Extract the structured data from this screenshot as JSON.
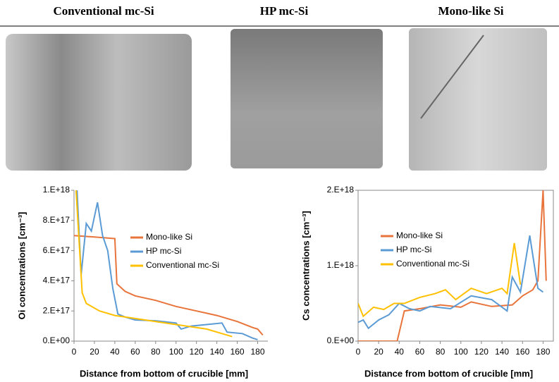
{
  "images": {
    "labels": [
      "Conventional  mc-Si",
      "HP mc-Si",
      "Mono-like Si"
    ]
  },
  "chart_data": [
    {
      "type": "line",
      "x_label": "Distance from bottom of crucible [mm]",
      "y_label": "Oi  concentrations [cm⁻³]",
      "xlim": [
        0,
        190
      ],
      "xticks": [
        0,
        20,
        40,
        60,
        80,
        100,
        120,
        140,
        160,
        180
      ],
      "ylim": [
        0,
        1e+18
      ],
      "yticks": [
        {
          "value": 0,
          "label": "0.E+00"
        },
        {
          "value": 2e+17,
          "label": "2.E+17"
        },
        {
          "value": 4e+17,
          "label": "4.E+17"
        },
        {
          "value": 6e+17,
          "label": "6.E+17"
        },
        {
          "value": 8e+17,
          "label": "8.E+17"
        },
        {
          "value": 1e+18,
          "label": "1.E+18"
        }
      ],
      "series": [
        {
          "name": "Mono-like Si",
          "color": "#e8743b",
          "x": [
            0,
            20,
            40,
            42,
            50,
            60,
            80,
            100,
            120,
            140,
            160,
            175,
            180,
            185
          ],
          "values": [
            7e+17,
            6.9e+17,
            6.8e+17,
            3.8e+17,
            3.3e+17,
            3e+17,
            2.7e+17,
            2.3e+17,
            2e+17,
            1.7e+17,
            1.3e+17,
            9e+16,
            8e+16,
            4e+16
          ]
        },
        {
          "name": "HP mc-Si",
          "color": "#5b9bd5",
          "x": [
            3,
            7,
            12,
            17,
            23,
            28,
            33,
            38,
            43,
            50,
            60,
            80,
            100,
            105,
            115,
            130,
            145,
            150,
            165,
            175,
            180
          ],
          "values": [
            1e+18,
            4.4e+17,
            7.8e+17,
            7.3e+17,
            9.2e+17,
            7e+17,
            6e+17,
            3.5e+17,
            1.8e+17,
            1.6e+17,
            1.4e+17,
            1.35e+17,
            1.2e+17,
            8e+16,
            1e+17,
            1.1e+17,
            1.2e+17,
            6e+16,
            5e+16,
            2e+16,
            1e+16
          ]
        },
        {
          "name": "Conventional mc-Si",
          "color": "#ffc000",
          "x": [
            2,
            8,
            12,
            25,
            40,
            60,
            80,
            100,
            130,
            145,
            155
          ],
          "values": [
            1e+18,
            3.2e+17,
            2.5e+17,
            2e+17,
            1.7e+17,
            1.5e+17,
            1.3e+17,
            1.1e+17,
            8e+16,
            5e+16,
            3e+16
          ]
        }
      ]
    },
    {
      "type": "line",
      "x_label": "Distance from bottom of crucible [mm]",
      "y_label": "Cs  concentrations [cm⁻³]",
      "xlim": [
        0,
        190
      ],
      "xticks": [
        0,
        20,
        40,
        60,
        80,
        100,
        120,
        140,
        160,
        180
      ],
      "ylim": [
        0,
        2e+18
      ],
      "yticks": [
        {
          "value": 0,
          "label": "0.E+00"
        },
        {
          "value": 1e+18,
          "label": "1.E+18"
        },
        {
          "value": 2e+18,
          "label": "2.E+18"
        }
      ],
      "series": [
        {
          "name": "Mono-like Si",
          "color": "#e8743b",
          "x": [
            0,
            20,
            38,
            45,
            60,
            80,
            100,
            110,
            130,
            150,
            160,
            170,
            175,
            180,
            183
          ],
          "values": [
            0,
            0,
            0,
            4e+17,
            4.3e+17,
            4.8e+17,
            4.5e+17,
            5.2e+17,
            4.6e+17,
            4.8e+17,
            6e+17,
            6.8e+17,
            8e+17,
            2e+18,
            8e+17
          ]
        },
        {
          "name": "HP mc-Si",
          "color": "#5b9bd5",
          "x": [
            0,
            5,
            10,
            20,
            30,
            40,
            50,
            60,
            70,
            90,
            110,
            130,
            145,
            150,
            158,
            167,
            175,
            180
          ],
          "values": [
            2.5e+17,
            2.8e+17,
            1.7e+17,
            2.8e+17,
            3.5e+17,
            5e+17,
            4.3e+17,
            4e+17,
            4.6e+17,
            4.3e+17,
            6e+17,
            5.5e+17,
            4e+17,
            8.5e+17,
            6.5e+17,
            1.4e+18,
            7e+17,
            6.5e+17
          ]
        },
        {
          "name": "Conventional mc-Si",
          "color": "#ffc000",
          "x": [
            0,
            5,
            15,
            25,
            35,
            45,
            60,
            75,
            85,
            95,
            110,
            125,
            140,
            145,
            152,
            158
          ],
          "values": [
            5e+17,
            3.3e+17,
            4.5e+17,
            4.2e+17,
            5e+17,
            5e+17,
            5.8e+17,
            6.3e+17,
            6.8e+17,
            5.5e+17,
            7e+17,
            6.3e+17,
            7e+17,
            6.3e+17,
            1.3e+18,
            7.5e+17
          ]
        }
      ]
    }
  ]
}
